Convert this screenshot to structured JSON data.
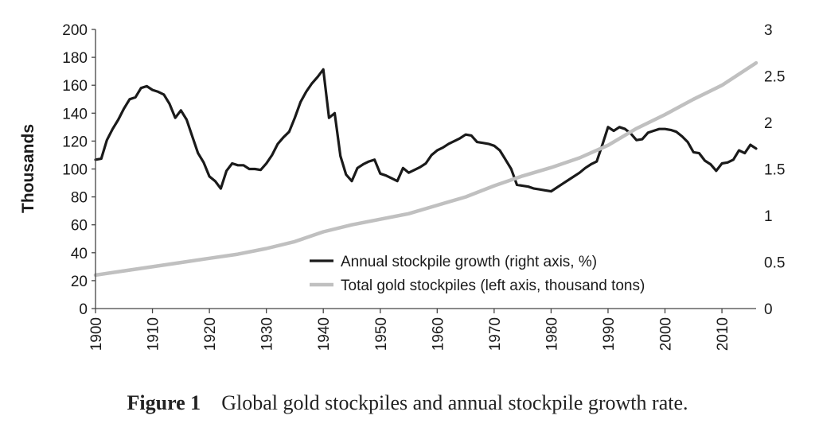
{
  "chart_data": {
    "type": "line",
    "caption_label": "Figure 1",
    "caption_text": "Global gold stockpiles and annual stockpile growth rate.",
    "ylabel_left": "Thousands",
    "left_axis": {
      "ylim": [
        0,
        200
      ],
      "ticks": [
        "200",
        "180",
        "160",
        "140",
        "120",
        "100",
        "80",
        "60",
        "40",
        "20",
        "0"
      ],
      "tick_values": [
        200,
        180,
        160,
        140,
        120,
        100,
        80,
        60,
        40,
        20,
        0
      ]
    },
    "right_axis": {
      "ylim": [
        0,
        3
      ],
      "ticks": [
        "3",
        "2.5",
        "2",
        "1.5",
        "1",
        "0.5",
        "0"
      ],
      "tick_values": [
        3,
        2.5,
        2,
        1.5,
        1,
        0.5,
        0
      ]
    },
    "x_axis": {
      "xlim": [
        1900,
        2016
      ],
      "ticks": [
        "1900",
        "1910",
        "1920",
        "1930",
        "1940",
        "1950",
        "1960",
        "1970",
        "1980",
        "1990",
        "2000",
        "2010"
      ],
      "tick_values": [
        1900,
        1910,
        1920,
        1930,
        1940,
        1950,
        1960,
        1970,
        1980,
        1990,
        2000,
        2010
      ]
    },
    "grid": false,
    "legend_position": "bottom-right",
    "colors": {
      "growth": "#1a1a1a",
      "stockpile": "#c0c0c0"
    },
    "series": [
      {
        "name": "Annual stockpile growth (right axis, %)",
        "axis": "right",
        "x": [
          1900,
          1901,
          1902,
          1903,
          1904,
          1905,
          1906,
          1907,
          1908,
          1909,
          1910,
          1911,
          1912,
          1913,
          1914,
          1915,
          1916,
          1917,
          1918,
          1919,
          1920,
          1921,
          1922,
          1923,
          1924,
          1925,
          1926,
          1927,
          1928,
          1929,
          1930,
          1931,
          1932,
          1933,
          1934,
          1935,
          1936,
          1937,
          1938,
          1939,
          1940,
          1941,
          1942,
          1943,
          1944,
          1945,
          1946,
          1947,
          1948,
          1949,
          1950,
          1951,
          1952,
          1953,
          1954,
          1955,
          1956,
          1957,
          1958,
          1959,
          1960,
          1961,
          1962,
          1963,
          1964,
          1965,
          1966,
          1967,
          1968,
          1969,
          1970,
          1971,
          1972,
          1973,
          1974,
          1975,
          1976,
          1977,
          1978,
          1979,
          1980,
          1981,
          1982,
          1983,
          1984,
          1985,
          1986,
          1987,
          1988,
          1989,
          1990,
          1991,
          1992,
          1993,
          1994,
          1995,
          1996,
          1997,
          1998,
          1999,
          2000,
          2001,
          2002,
          2003,
          2004,
          2005,
          2006,
          2007,
          2008,
          2009,
          2010,
          2011,
          2012,
          2013,
          2014,
          2015,
          2016
        ],
        "values": [
          1.6,
          1.61,
          1.81,
          1.93,
          2.03,
          2.15,
          2.25,
          2.27,
          2.37,
          2.39,
          2.35,
          2.33,
          2.3,
          2.2,
          2.05,
          2.13,
          2.03,
          1.85,
          1.67,
          1.57,
          1.42,
          1.37,
          1.29,
          1.48,
          1.56,
          1.54,
          1.54,
          1.5,
          1.5,
          1.49,
          1.56,
          1.65,
          1.77,
          1.84,
          1.9,
          2.05,
          2.22,
          2.33,
          2.42,
          2.49,
          2.57,
          2.05,
          2.1,
          1.64,
          1.44,
          1.37,
          1.51,
          1.55,
          1.58,
          1.6,
          1.45,
          1.43,
          1.4,
          1.37,
          1.51,
          1.46,
          1.49,
          1.52,
          1.56,
          1.65,
          1.7,
          1.73,
          1.77,
          1.8,
          1.83,
          1.87,
          1.86,
          1.79,
          1.78,
          1.77,
          1.75,
          1.7,
          1.6,
          1.5,
          1.33,
          1.32,
          1.31,
          1.29,
          1.28,
          1.27,
          1.26,
          1.3,
          1.34,
          1.38,
          1.42,
          1.46,
          1.51,
          1.55,
          1.58,
          1.76,
          1.95,
          1.91,
          1.95,
          1.93,
          1.88,
          1.81,
          1.82,
          1.89,
          1.91,
          1.93,
          1.93,
          1.92,
          1.9,
          1.85,
          1.79,
          1.68,
          1.67,
          1.59,
          1.55,
          1.48,
          1.56,
          1.57,
          1.6,
          1.7,
          1.67,
          1.76,
          1.72
        ]
      },
      {
        "name": "Total gold stockpiles (left axis, thousand tons)",
        "axis": "left",
        "x": [
          1900,
          1905,
          1910,
          1915,
          1920,
          1925,
          1930,
          1935,
          1940,
          1945,
          1950,
          1955,
          1960,
          1965,
          1970,
          1975,
          1980,
          1985,
          1990,
          1995,
          2000,
          2005,
          2010,
          2016
        ],
        "values": [
          24,
          27,
          30,
          33,
          36,
          39,
          43,
          48,
          55,
          60,
          64,
          68,
          74,
          80,
          88,
          95,
          101,
          108,
          117,
          129,
          139,
          150,
          160,
          176
        ]
      }
    ]
  }
}
